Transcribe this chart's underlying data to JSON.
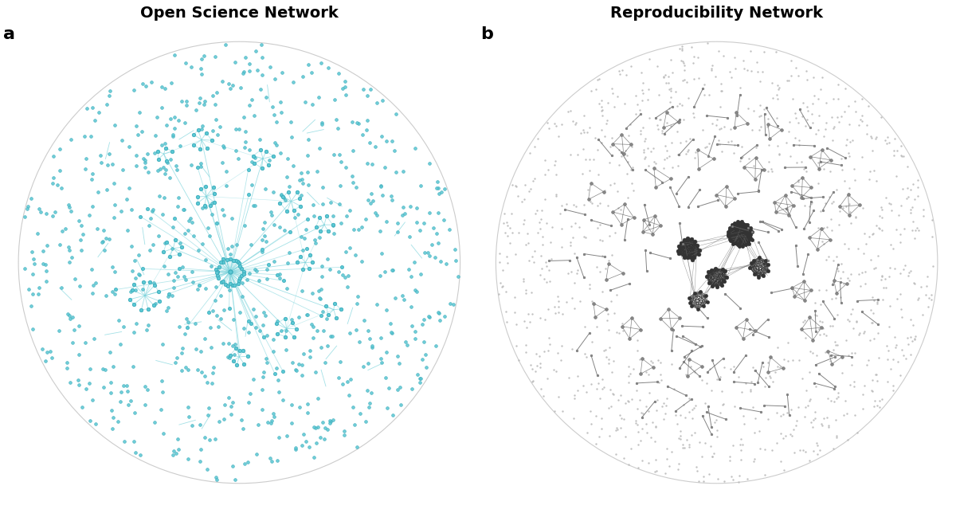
{
  "fig_width": 12.0,
  "fig_height": 6.59,
  "dpi": 100,
  "bg_color": "#ffffff",
  "panel_a_title": "Open Science Network",
  "panel_b_title": "Reproducibility Network",
  "label_a": "a",
  "label_b": "b",
  "os_node_color": "#5BC8D4",
  "os_edge_color": "#7DD4DC",
  "os_node_edge_color": "#3AABBA",
  "repro_node_color": "#BBBBBB",
  "repro_edge_color": "#666666",
  "repro_dark_color": "#333333",
  "title_fontsize": 14,
  "label_fontsize": 16
}
